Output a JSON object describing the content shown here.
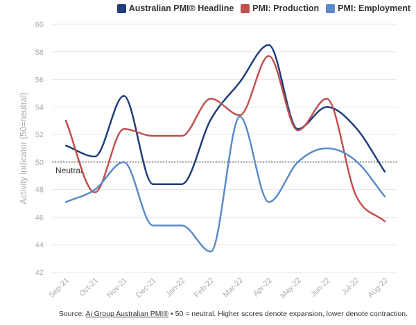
{
  "chart_data": {
    "type": "line",
    "title": "",
    "xlabel": "",
    "ylabel": "Activity indicator (50=neutral)",
    "ylim": [
      42,
      60
    ],
    "yticks": [
      42,
      44,
      46,
      48,
      50,
      52,
      54,
      56,
      58,
      60
    ],
    "grid": "horizontal",
    "legend_position": "top-right",
    "categories": [
      "Sep-21",
      "Oct-21",
      "Nov-21",
      "Dec-21",
      "Jan-22",
      "Feb-22",
      "Mar-22",
      "Apr-22",
      "May-22",
      "Jun-22",
      "Jul-22",
      "Aug-22"
    ],
    "series": [
      {
        "name": "Australian PMI® Headline",
        "color": "#1f3d7a",
        "values": [
          51.2,
          50.4,
          54.8,
          48.4,
          48.4,
          53.1,
          55.8,
          58.5,
          52.4,
          54.0,
          52.5,
          49.3
        ]
      },
      {
        "name": "PMI: Production",
        "color": "#c0504d",
        "values": [
          53.0,
          47.8,
          52.4,
          51.9,
          51.9,
          54.6,
          53.4,
          57.7,
          52.3,
          54.6,
          47.6,
          45.7
        ]
      },
      {
        "name": "PMI: Employment",
        "color": "#5b8ac9",
        "values": [
          47.1,
          48.0,
          50.0,
          45.4,
          45.4,
          43.5,
          53.3,
          47.1,
          50.0,
          51.0,
          50.1,
          47.5
        ]
      }
    ],
    "reference_line": {
      "value": 50,
      "label": "Neutral",
      "style": "dotted",
      "color": "#444444"
    },
    "source": {
      "prefix": "Source: ",
      "link_text": "Ai Group Australian PMI®",
      "suffix": " • 50 = neutral. Higher scores denote expansion, lower denote contraction."
    }
  }
}
